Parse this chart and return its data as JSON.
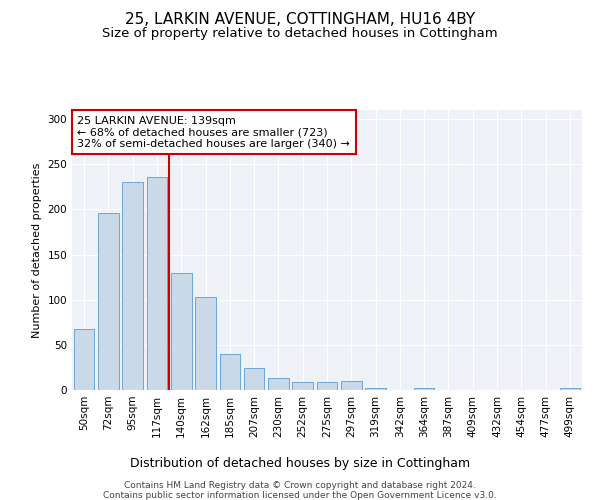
{
  "title1": "25, LARKIN AVENUE, COTTINGHAM, HU16 4BY",
  "title2": "Size of property relative to detached houses in Cottingham",
  "xlabel": "Distribution of detached houses by size in Cottingham",
  "ylabel": "Number of detached properties",
  "categories": [
    "50sqm",
    "72sqm",
    "95sqm",
    "117sqm",
    "140sqm",
    "162sqm",
    "185sqm",
    "207sqm",
    "230sqm",
    "252sqm",
    "275sqm",
    "297sqm",
    "319sqm",
    "342sqm",
    "364sqm",
    "387sqm",
    "409sqm",
    "432sqm",
    "454sqm",
    "477sqm",
    "499sqm"
  ],
  "values": [
    68,
    196,
    230,
    236,
    130,
    103,
    40,
    24,
    13,
    9,
    9,
    10,
    2,
    0,
    2,
    0,
    0,
    0,
    0,
    0,
    2
  ],
  "bar_color": "#c9d9e8",
  "bar_edge_color": "#5b9bd5",
  "vline_bin_index": 4,
  "vline_color": "#cc0000",
  "annotation_line1": "25 LARKIN AVENUE: 139sqm",
  "annotation_line2": "← 68% of detached houses are smaller (723)",
  "annotation_line3": "32% of semi-detached houses are larger (340) →",
  "annotation_box_color": "#ffffff",
  "annotation_box_edge": "#cc0000",
  "ylim": [
    0,
    310
  ],
  "yticks": [
    0,
    50,
    100,
    150,
    200,
    250,
    300
  ],
  "background_color": "#eef2f7",
  "footer1": "Contains HM Land Registry data © Crown copyright and database right 2024.",
  "footer2": "Contains public sector information licensed under the Open Government Licence v3.0.",
  "title1_fontsize": 11,
  "title2_fontsize": 9.5,
  "xlabel_fontsize": 9,
  "ylabel_fontsize": 8,
  "tick_fontsize": 7.5,
  "annotation_fontsize": 8,
  "footer_fontsize": 6.5
}
